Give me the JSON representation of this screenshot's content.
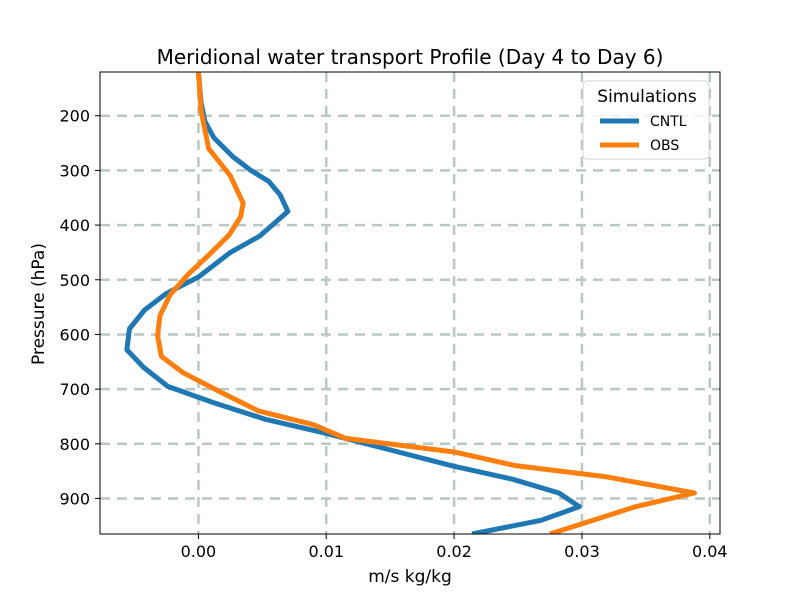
{
  "chart_data": {
    "type": "line",
    "title": "Meridional water transport Profile (Day 4 to Day 6)",
    "xlabel": "m/s kg/kg",
    "ylabel": "Pressure (hPa)",
    "xlim": [
      -0.0077,
      0.0408
    ],
    "ylim": [
      965,
      120
    ],
    "y_inverted": true,
    "grid": true,
    "grid_style": "dashed",
    "grid_color": "#b9c7c6",
    "x_ticks": [
      0.0,
      0.01,
      0.02,
      0.03,
      0.04
    ],
    "x_tick_labels": [
      "0.00",
      "0.01",
      "0.02",
      "0.03",
      "0.04"
    ],
    "y_ticks": [
      200,
      300,
      400,
      500,
      600,
      700,
      800,
      900
    ],
    "y_tick_labels": [
      "200",
      "300",
      "400",
      "500",
      "600",
      "700",
      "800",
      "900"
    ],
    "legend": {
      "title": "Simulations",
      "placement": "top-right"
    },
    "series": [
      {
        "name": "CNTL",
        "color": "#1f77b4",
        "x": [
          0.0,
          0.0002,
          0.0005,
          0.0012,
          0.0027,
          0.0041,
          0.0055,
          0.0064,
          0.007,
          0.0048,
          0.0025,
          0.0,
          -0.0025,
          -0.0042,
          -0.0054,
          -0.0056,
          -0.0043,
          -0.0024,
          0.0012,
          0.0052,
          0.0098,
          0.0148,
          0.0198,
          0.0246,
          0.0282,
          0.0298,
          0.0268,
          0.0214
        ],
        "y": [
          120,
          175,
          210,
          240,
          275,
          300,
          320,
          345,
          375,
          420,
          450,
          495,
          525,
          555,
          590,
          628,
          660,
          695,
          725,
          755,
          780,
          810,
          840,
          865,
          890,
          915,
          940,
          965
        ]
      },
      {
        "name": "OBS",
        "color": "#ff7f0e",
        "x": [
          0.0,
          0.0002,
          0.0005,
          0.0008,
          0.0025,
          0.0035,
          0.0033,
          0.0024,
          0.0008,
          -0.0008,
          -0.0022,
          -0.003,
          -0.0032,
          -0.0029,
          -0.0012,
          0.0017,
          0.0047,
          0.009,
          0.0115,
          0.02,
          0.0248,
          0.0318,
          0.0388,
          0.0342,
          0.0275
        ],
        "y": [
          120,
          190,
          225,
          260,
          310,
          360,
          385,
          418,
          455,
          490,
          527,
          565,
          602,
          640,
          670,
          705,
          740,
          765,
          790,
          815,
          840,
          860,
          890,
          915,
          965
        ]
      }
    ]
  }
}
